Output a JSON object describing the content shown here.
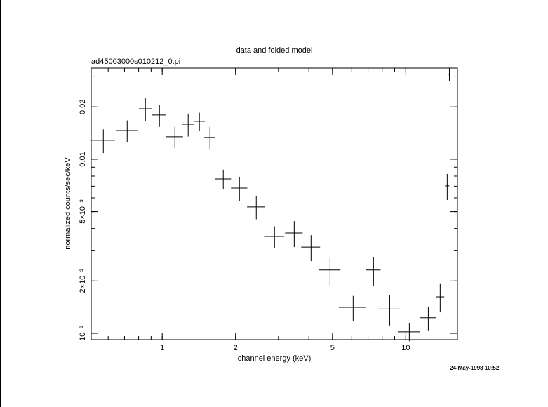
{
  "chart_data": {
    "type": "errorcross",
    "title": "data and folded model",
    "subtitle": "ad45003000s010212_0.pi",
    "xlabel": "channel energy (keV)",
    "ylabel": "normalized counts/sec/keV",
    "annotation": "24-May-1998 10:52",
    "xscale": "log",
    "yscale": "log",
    "color": "#000000",
    "x": [
      0.573,
      0.718,
      0.853,
      0.974,
      1.127,
      1.278,
      1.421,
      1.57,
      1.781,
      2.075,
      2.433,
      2.891,
      3.483,
      4.083,
      4.886,
      6.08,
      7.37,
      8.59,
      10.34,
      12.37,
      13.84,
      14.79,
      15.1
    ],
    "xerr": [
      0.067,
      0.072,
      0.051,
      0.065,
      0.09,
      0.072,
      0.075,
      0.083,
      0.136,
      0.159,
      0.203,
      0.271,
      0.289,
      0.364,
      0.505,
      0.77,
      0.51,
      0.86,
      1.07,
      0.9,
      0.55,
      0.3,
      0.13
    ],
    "values": [
      0.01285,
      0.01462,
      0.0195,
      0.01795,
      0.01346,
      0.0159,
      0.01651,
      0.01334,
      0.00771,
      0.00683,
      0.00532,
      0.0036,
      0.00377,
      0.00313,
      0.00231,
      0.00141,
      0.00231,
      0.00138,
      0.00102,
      0.00123,
      0.00162,
      0.00703,
      0.03076
    ],
    "yerr": [
      0.002,
      0.0021,
      0.0029,
      0.0026,
      0.0019,
      0.0024,
      0.002,
      0.002,
      0.001,
      0.0011,
      0.0008,
      0.00052,
      0.00064,
      0.00053,
      0.00042,
      0.00023,
      0.00044,
      0.00027,
      0.00012,
      0.00019,
      0.0003,
      0.0012,
      0.0027
    ],
    "xlim": [
      0.511,
      16.3
    ],
    "ylim": [
      0.00092,
      0.0334
    ],
    "xticks": [
      1,
      2,
      5,
      10
    ],
    "yticks": [
      {
        "value": 0.001,
        "label": "10⁻³"
      },
      {
        "value": 0.002,
        "label": "2×10⁻³"
      },
      {
        "value": 0.005,
        "label": "5×10⁻³"
      },
      0.01,
      0.02
    ]
  }
}
